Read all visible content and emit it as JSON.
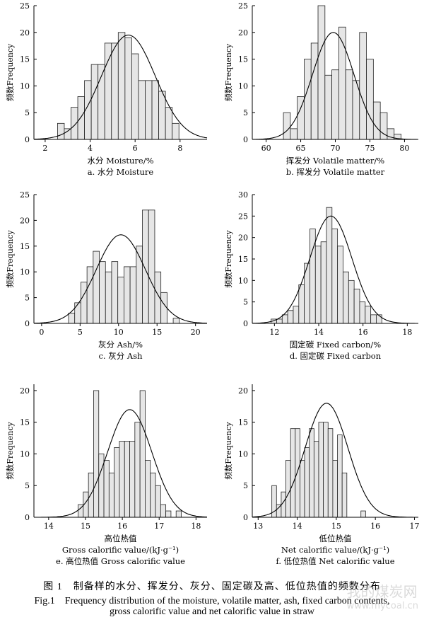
{
  "figure": {
    "caption_cn": "图 1　制备样的水分、挥发分、灰分、固定碳及高、低位热值的频数分布",
    "caption_en_line1": "Fig.1　Frequency distribution of the moisture, volatile matter, ash, fixed carbon contents,",
    "caption_en_line2": "gross calorific value and net calorific value in straw",
    "watermark": "我的煤炭网",
    "watermark_url": "www.mycoal.cn"
  },
  "chart_data": [
    {
      "type": "bar",
      "ylabel": "频数Frequency",
      "xlabel": "水分 Moisture/%",
      "xlabel2": "",
      "subcaption": "a. 水分 Moisture",
      "xlim": [
        1.5,
        9.2
      ],
      "ylim": [
        0,
        25
      ],
      "xticks": [
        2,
        4,
        6,
        8
      ],
      "yticks": [
        0,
        5,
        10,
        15,
        20,
        25
      ],
      "bin_start": 2.25,
      "bin_width": 0.3,
      "values": [
        0,
        3,
        2,
        6,
        8,
        11,
        14,
        14,
        18,
        18,
        20,
        19,
        16,
        11,
        11,
        11,
        9,
        6,
        3,
        0
      ],
      "normal_fit": {
        "mean": 5.7,
        "sd": 1.2,
        "peak": 19.5
      }
    },
    {
      "type": "bar",
      "ylabel": "频数Frequency",
      "xlabel": "挥发分 Volatile matter/%",
      "xlabel2": "",
      "subcaption": "b. 挥发分 Volatile matter",
      "xlim": [
        58,
        82
      ],
      "ylim": [
        0,
        25
      ],
      "xticks": [
        60,
        65,
        70,
        75,
        80
      ],
      "yticks": [
        0,
        5,
        10,
        15,
        20,
        25
      ],
      "bin_start": 62.5,
      "bin_width": 1.0,
      "values": [
        5,
        2,
        8,
        15,
        18,
        25,
        12,
        13,
        21,
        13,
        11,
        20,
        15,
        7,
        5,
        2,
        1
      ],
      "normal_fit": {
        "mean": 69.7,
        "sd": 3.0,
        "peak": 20
      }
    },
    {
      "type": "bar",
      "ylabel": "频数Frequency",
      "xlabel": "灰分 Ash/%",
      "xlabel2": "",
      "subcaption": "c. 灰分 Ash",
      "xlim": [
        -1,
        21.5
      ],
      "ylim": [
        0,
        25
      ],
      "xticks": [
        0,
        5,
        10,
        15,
        20
      ],
      "yticks": [
        0,
        5,
        10,
        15,
        20,
        25
      ],
      "bin_start": 3.5,
      "bin_width": 0.8,
      "values": [
        2,
        4,
        8,
        11,
        14,
        12,
        10,
        12,
        9,
        11,
        11,
        15,
        22,
        22,
        10,
        6,
        0,
        1
      ],
      "normal_fit": {
        "mean": 10.3,
        "sd": 3.2,
        "peak": 17.2
      }
    },
    {
      "type": "bar",
      "ylabel": "频数Frequency",
      "xlabel": "固定碳 Fixed carbon/%",
      "xlabel2": "",
      "subcaption": "d. 固定碳 Fixed carbon",
      "xlim": [
        11,
        18.5
      ],
      "ylim": [
        0,
        30
      ],
      "xticks": [
        12,
        14,
        16,
        18
      ],
      "yticks": [
        0,
        5,
        10,
        15,
        20,
        25,
        30
      ],
      "bin_start": 11.85,
      "bin_width": 0.25,
      "values": [
        1,
        1,
        2,
        3,
        4,
        9,
        14,
        22,
        18,
        19,
        27,
        22,
        18,
        12,
        10,
        8,
        5,
        4,
        2,
        2
      ],
      "normal_fit": {
        "mean": 14.55,
        "sd": 0.95,
        "peak": 25
      }
    },
    {
      "type": "bar",
      "ylabel": "频数Frequency",
      "xlabel": "高位热值",
      "xlabel2": "Gross calorific value/(kJ·g⁻¹)",
      "subcaption": "e. 高位热值 Gross calorific value",
      "xlim": [
        13.6,
        18.3
      ],
      "ylim": [
        0,
        21
      ],
      "xticks": [
        14,
        15,
        16,
        17,
        18
      ],
      "yticks": [
        0,
        5,
        10,
        15,
        20
      ],
      "bin_start": 14.8,
      "bin_width": 0.14,
      "values": [
        2,
        4,
        7,
        20,
        10,
        9,
        7,
        11,
        12,
        12,
        12,
        15,
        20,
        9,
        7,
        5,
        2,
        1,
        0,
        1
      ],
      "normal_fit": {
        "mean": 16.2,
        "sd": 0.6,
        "peak": 17
      }
    },
    {
      "type": "bar",
      "ylabel": "频数Frequency",
      "xlabel": "低位热值",
      "xlabel2": "Net calorific value/(kJ·g⁻¹)",
      "subcaption": "f. 低位热值 Net calorific value",
      "xlim": [
        12.85,
        17.1
      ],
      "ylim": [
        0,
        21
      ],
      "xticks": [
        13,
        14,
        15,
        16,
        17
      ],
      "yticks": [
        0,
        5,
        10,
        15,
        20
      ],
      "bin_start": 13.35,
      "bin_width": 0.12,
      "values": [
        5,
        2,
        4,
        9,
        14,
        14,
        9,
        11,
        14,
        12,
        15,
        15,
        14,
        9,
        13,
        7,
        0,
        0,
        0,
        1
      ],
      "normal_fit": {
        "mean": 14.75,
        "sd": 0.55,
        "peak": 18
      }
    }
  ]
}
